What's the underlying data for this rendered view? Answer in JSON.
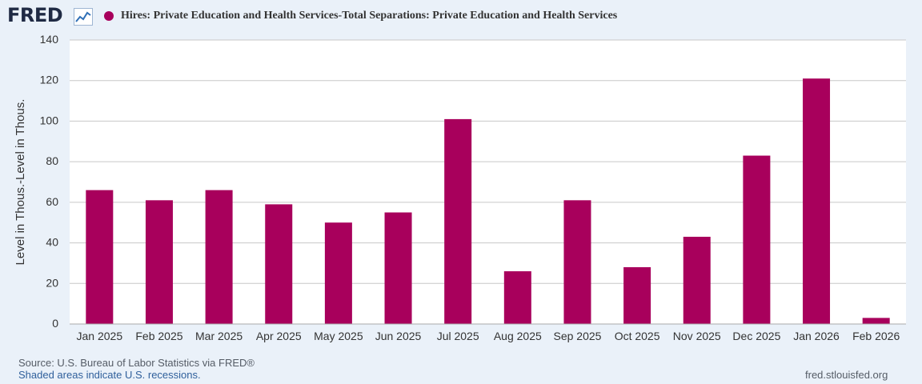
{
  "header": {
    "logo_text": "FRED",
    "logo_icon": "line-chart-icon",
    "series_title": "Hires: Private Education and Health Services-Total Separations: Private Education and Health Services"
  },
  "footer": {
    "source": "Source: U.S. Bureau of Labor Statistics via FRED®",
    "recessions_note": "Shaded areas indicate U.S. recessions.",
    "site": "fred.stlouisfed.org"
  },
  "colors": {
    "bar": "#a8005c",
    "background": "#eaf1f9",
    "plot_background": "#ffffff",
    "grid": "#c8c8c8",
    "text": "#333333"
  },
  "chart_data": {
    "type": "bar",
    "title": "Hires: Private Education and Health Services-Total Separations: Private Education and Health Services",
    "xlabel": "",
    "ylabel": "Level in Thous.-Level in Thous.",
    "ylim": [
      0,
      140
    ],
    "yticks": [
      0,
      20,
      40,
      60,
      80,
      100,
      120,
      140
    ],
    "grid": true,
    "categories": [
      "Jan 2025",
      "Feb 2025",
      "Mar 2025",
      "Apr 2025",
      "May 2025",
      "Jun 2025",
      "Jul 2025",
      "Aug 2025",
      "Sep 2025",
      "Oct 2025",
      "Nov 2025",
      "Dec 2025",
      "Jan 2026",
      "Feb 2026"
    ],
    "series": [
      {
        "name": "Hires: Private Education and Health Services-Total Separations: Private Education and Health Services",
        "values": [
          66,
          61,
          66,
          59,
          50,
          55,
          101,
          26,
          61,
          28,
          43,
          83,
          121,
          3
        ]
      }
    ]
  }
}
